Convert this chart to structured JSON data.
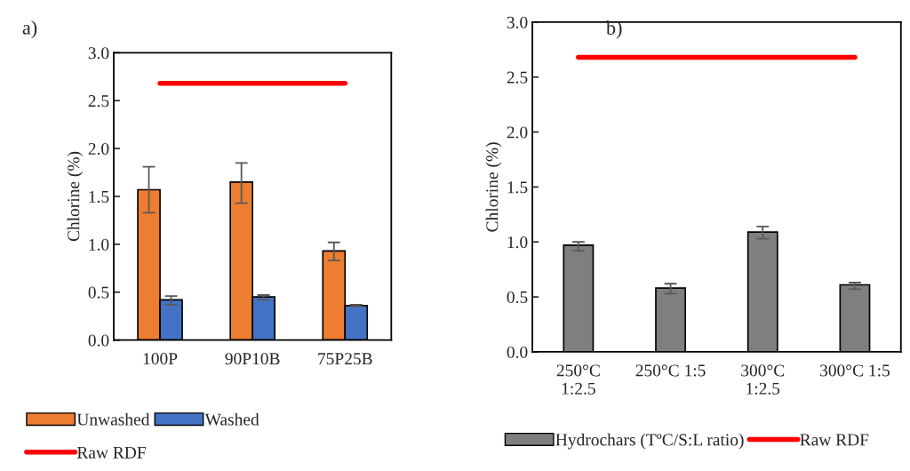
{
  "chart_data": [
    {
      "type": "bar",
      "ylabel": "Chlorine (%)",
      "categories": [
        "100P",
        "90P10B",
        "75P25B"
      ],
      "series": [
        {
          "name": "Unwashed",
          "color": "#ed7d31",
          "values": [
            1.57,
            1.65,
            0.93
          ],
          "errors": [
            [
              1.33,
              1.81
            ],
            [
              1.43,
              1.85
            ],
            [
              0.83,
              1.02
            ]
          ]
        },
        {
          "name": "Washed",
          "color": "#4472c4",
          "values": [
            0.42,
            0.45,
            0.36
          ],
          "errors": [
            [
              0.37,
              0.46
            ],
            [
              0.42,
              0.47
            ],
            [
              0.35,
              0.37
            ]
          ]
        },
        {
          "name": "Raw RDF",
          "type": "line",
          "color": "#ff0000",
          "values": [
            2.68,
            2.68,
            2.68
          ]
        }
      ],
      "ylim": [
        0,
        3
      ],
      "yticks": [
        {
          "value": 0,
          "label": "0.0"
        },
        0.5,
        {
          "value": 1,
          "label": "1.0"
        },
        1.5,
        {
          "value": 2,
          "label": "2.0"
        },
        2.5,
        {
          "value": 3,
          "label": "3.0"
        }
      ],
      "annotations": [
        "a)"
      ],
      "legend": "bottom",
      "grid": false
    },
    {
      "type": "bar",
      "ylabel": "Chlorine (%)",
      "categories": [
        "250°C\n1:2.5",
        "250°C 1:5",
        "300°C\n1:2.5",
        "300°C 1:5"
      ],
      "series": [
        {
          "name": "Hydrochars (TºC/S:L ratio)",
          "color": "#7f7f7f",
          "values": [
            0.97,
            0.58,
            1.09,
            0.61
          ],
          "errors": [
            [
              0.92,
              1.0
            ],
            [
              0.53,
              0.62
            ],
            [
              1.03,
              1.14
            ],
            [
              0.57,
              0.63
            ]
          ]
        },
        {
          "name": "Raw RDF",
          "type": "line",
          "color": "#ff0000",
          "values": [
            2.68,
            2.68,
            2.68,
            2.68
          ]
        }
      ],
      "ylim": [
        0,
        3
      ],
      "yticks": [
        {
          "value": 0,
          "label": "0.0"
        },
        0.5,
        {
          "value": 1,
          "label": "1.0"
        },
        1.5,
        {
          "value": 2,
          "label": "2.0"
        },
        2.5,
        {
          "value": 3,
          "label": "3.0"
        }
      ],
      "annotations": [
        "b)"
      ],
      "legend": "bottom",
      "grid": false
    }
  ]
}
